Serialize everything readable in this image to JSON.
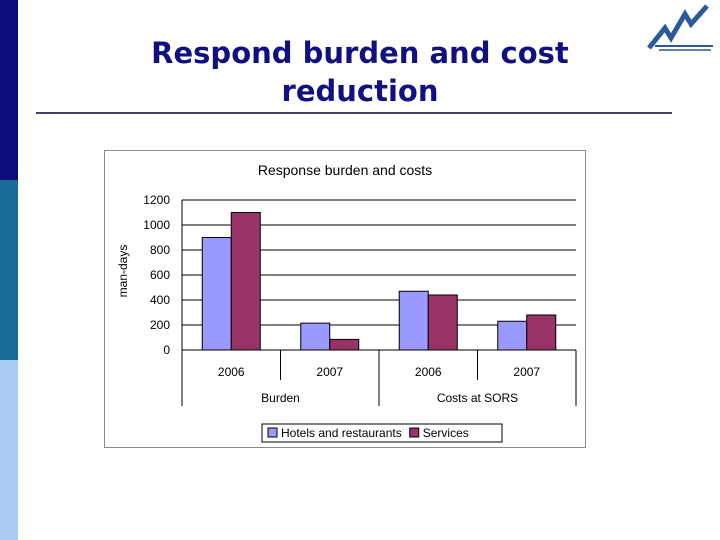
{
  "slide": {
    "title": "Respond burden and cost reduction"
  },
  "colors": {
    "sidebar": [
      "#0c0c7e",
      "#1a6a9a",
      "#a9cdf0"
    ],
    "title": "#101080",
    "logo": "#2a5a9a"
  },
  "logo": {
    "icon": "zigzag-lightning-logo-icon"
  },
  "chart_data": {
    "type": "bar",
    "title": "Response burden and costs",
    "ylabel": "man-days",
    "xlabel": "",
    "ylim": [
      0,
      1200
    ],
    "yticks": [
      "0",
      "200",
      "400",
      "600",
      "800",
      "1000",
      "1200"
    ],
    "grid": true,
    "categories": [
      "2006",
      "2007",
      "2006",
      "2007"
    ],
    "groups": [
      {
        "label": "Burden",
        "categories": [
          "2006",
          "2007"
        ]
      },
      {
        "label": "Costs at SORS",
        "categories": [
          "2006",
          "2007"
        ]
      }
    ],
    "series": [
      {
        "name": "Hotels and restaurants",
        "color": "#9999ff",
        "values": [
          900,
          215,
          470,
          230
        ]
      },
      {
        "name": "Services",
        "color": "#993366",
        "values": [
          1100,
          85,
          440,
          280
        ]
      }
    ],
    "legend": "bottom"
  }
}
